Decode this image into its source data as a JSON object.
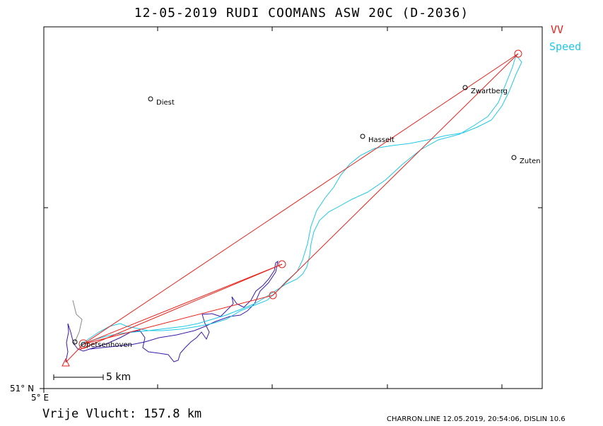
{
  "header": {
    "title": "12-05-2019   RUDI COOMANS   ASW 20C (D-2036)"
  },
  "legend": [
    {
      "label": "VV",
      "color": "#e8201a"
    },
    {
      "label": "Speed",
      "color": "#1ec8e6"
    }
  ],
  "axes": {
    "lat_label": "51° N",
    "lon_label": "5° E"
  },
  "places": [
    {
      "name": "Diest"
    },
    {
      "name": "Zwartberg"
    },
    {
      "name": "Hasselt"
    },
    {
      "name": "Zuten"
    },
    {
      "name": "Opetsenhoven"
    }
  ],
  "scale": {
    "label": "5 km"
  },
  "summary": {
    "distance": "Vrije Vlucht:  157.8 km"
  },
  "footer": {
    "text": "CHARRON.LINE 12.05.2019, 20:54:06, DISLIN 10.6"
  },
  "colors": {
    "task_line": "#e8201a",
    "track_speed": "#1ec8e6",
    "track_climb": "#3a1aa8",
    "axis": "#000000"
  }
}
